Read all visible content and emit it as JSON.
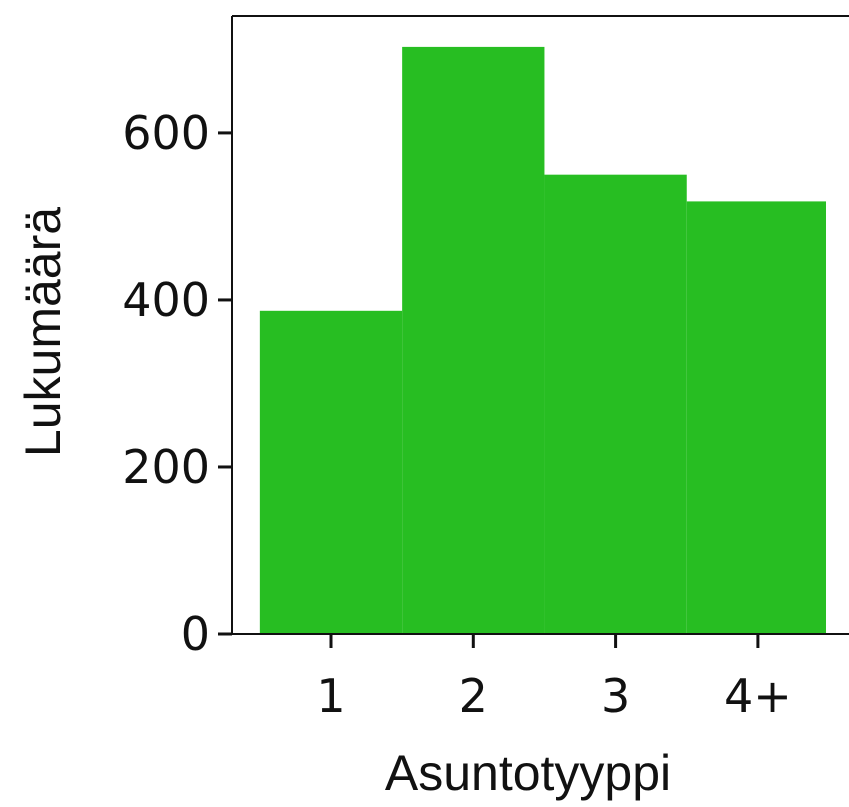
{
  "chart_data": {
    "type": "bar",
    "categories": [
      "1",
      "2",
      "3",
      "4+"
    ],
    "values": [
      387,
      703,
      550,
      518
    ],
    "title": "",
    "xlabel": "Asuntotyyppi",
    "ylabel": "Lukumäärä",
    "ylim": [
      0,
      740
    ],
    "yticks": [
      0,
      200,
      400,
      600
    ],
    "grid": false,
    "legend": "none",
    "colors": {
      "bar": "#27BE22",
      "axis": "#111111",
      "background": "#ffffff"
    }
  }
}
